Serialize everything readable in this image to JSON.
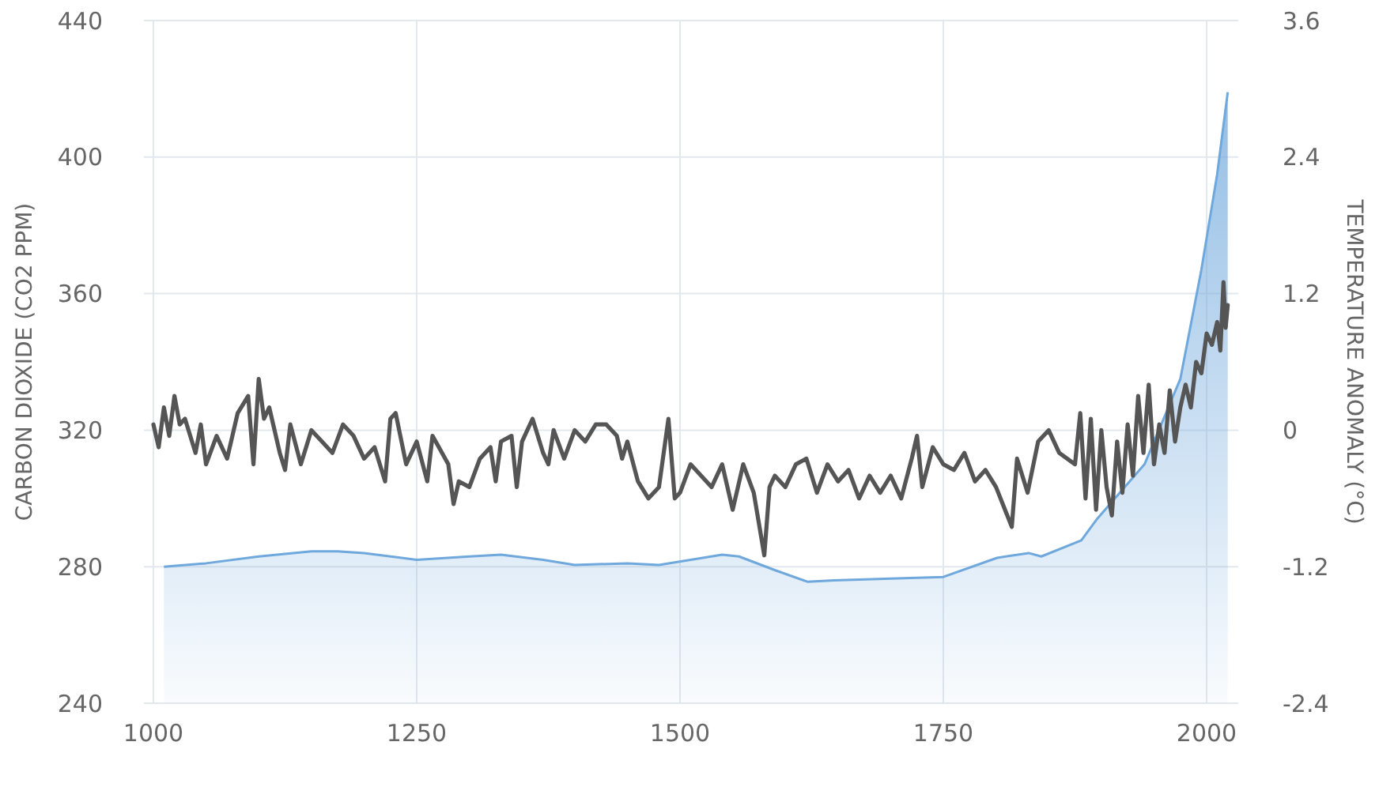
{
  "chart_data": {
    "type": "line",
    "ylabel": "CARBON DIOXIDE (CO2 PPM)",
    "y2label": "TEMPERATURE ANOMALY (°C)",
    "xlim": [
      1000,
      2030
    ],
    "xticks": [
      1000,
      1250,
      1500,
      1750,
      2000
    ],
    "ylim": [
      240,
      440
    ],
    "yticks": [
      240,
      280,
      320,
      360,
      400,
      440
    ],
    "y2lim": [
      -2.4,
      3.6
    ],
    "y2ticks": [
      -2.4,
      -1.2,
      0,
      1.2,
      2.4,
      3.6
    ],
    "grid": true,
    "series": [
      {
        "type": "area",
        "color": "#6fa8dc",
        "x": [
          1010,
          1050,
          1100,
          1150,
          1175,
          1200,
          1250,
          1300,
          1330,
          1370,
          1400,
          1450,
          1480,
          1510,
          1540,
          1556,
          1590,
          1621,
          1646,
          1700,
          1750,
          1801,
          1831,
          1843,
          1881,
          1896,
          1941,
          1975,
          1995,
          2010,
          2020
        ],
        "values": [
          280,
          281,
          283,
          284.5,
          284.5,
          284,
          282,
          283,
          283.5,
          282,
          280.5,
          281,
          280.5,
          282,
          283.5,
          283,
          279,
          275.6,
          276,
          276.5,
          277,
          282.6,
          284,
          283,
          287.7,
          294,
          310,
          335,
          367,
          395,
          419
        ]
      },
      {
        "axis": "y2",
        "color": "#555555",
        "x": [
          1000,
          1005,
          1010,
          1015,
          1020,
          1025,
          1030,
          1040,
          1045,
          1050,
          1060,
          1070,
          1080,
          1090,
          1095,
          1100,
          1105,
          1110,
          1120,
          1125,
          1130,
          1140,
          1150,
          1160,
          1170,
          1180,
          1190,
          1200,
          1210,
          1220,
          1225,
          1230,
          1240,
          1250,
          1260,
          1265,
          1280,
          1285,
          1290,
          1300,
          1310,
          1320,
          1325,
          1330,
          1340,
          1345,
          1350,
          1360,
          1370,
          1375,
          1380,
          1390,
          1400,
          1410,
          1420,
          1430,
          1440,
          1445,
          1450,
          1460,
          1470,
          1480,
          1489,
          1495,
          1500,
          1510,
          1520,
          1530,
          1540,
          1550,
          1560,
          1570,
          1580,
          1585,
          1590,
          1600,
          1610,
          1620,
          1630,
          1640,
          1650,
          1660,
          1670,
          1680,
          1690,
          1700,
          1710,
          1720,
          1725,
          1730,
          1740,
          1750,
          1760,
          1770,
          1780,
          1790,
          1800,
          1815,
          1820,
          1830,
          1840,
          1850,
          1860,
          1875,
          1880,
          1885,
          1890,
          1895,
          1900,
          1905,
          1910,
          1915,
          1920,
          1925,
          1930,
          1935,
          1940,
          1945,
          1950,
          1955,
          1960,
          1965,
          1970,
          1975,
          1980,
          1985,
          1990,
          1995,
          2000,
          2005,
          2010,
          2013,
          2016,
          2018,
          2020
        ],
        "values": [
          0.05,
          -0.15,
          0.2,
          -0.05,
          0.3,
          0.05,
          0.1,
          -0.2,
          0.05,
          -0.3,
          -0.05,
          -0.25,
          0.15,
          0.3,
          -0.3,
          0.45,
          0.1,
          0.2,
          -0.2,
          -0.35,
          0.05,
          -0.3,
          0,
          -0.1,
          -0.2,
          0.05,
          -0.05,
          -0.25,
          -0.15,
          -0.45,
          0.1,
          0.15,
          -0.3,
          -0.1,
          -0.45,
          -0.05,
          -0.3,
          -0.65,
          -0.45,
          -0.5,
          -0.25,
          -0.15,
          -0.45,
          -0.1,
          -0.05,
          -0.5,
          -0.1,
          0.1,
          -0.2,
          -0.3,
          0,
          -0.25,
          0,
          -0.1,
          0.05,
          0.05,
          -0.05,
          -0.25,
          -0.1,
          -0.45,
          -0.6,
          -0.5,
          0.1,
          -0.6,
          -0.55,
          -0.3,
          -0.4,
          -0.5,
          -0.3,
          -0.7,
          -0.3,
          -0.55,
          -1.1,
          -0.5,
          -0.4,
          -0.5,
          -0.3,
          -0.25,
          -0.55,
          -0.3,
          -0.45,
          -0.35,
          -0.6,
          -0.4,
          -0.55,
          -0.4,
          -0.6,
          -0.25,
          -0.05,
          -0.5,
          -0.15,
          -0.3,
          -0.35,
          -0.2,
          -0.45,
          -0.35,
          -0.5,
          -0.85,
          -0.25,
          -0.55,
          -0.1,
          0,
          -0.2,
          -0.3,
          0.15,
          -0.6,
          0.1,
          -0.7,
          0,
          -0.5,
          -0.75,
          -0.1,
          -0.55,
          0.05,
          -0.4,
          0.3,
          -0.2,
          0.4,
          -0.3,
          0.05,
          -0.2,
          0.35,
          -0.1,
          0.2,
          0.4,
          0.2,
          0.6,
          0.5,
          0.85,
          0.75,
          0.95,
          0.7,
          1.3,
          0.9,
          1.1
        ]
      }
    ]
  }
}
